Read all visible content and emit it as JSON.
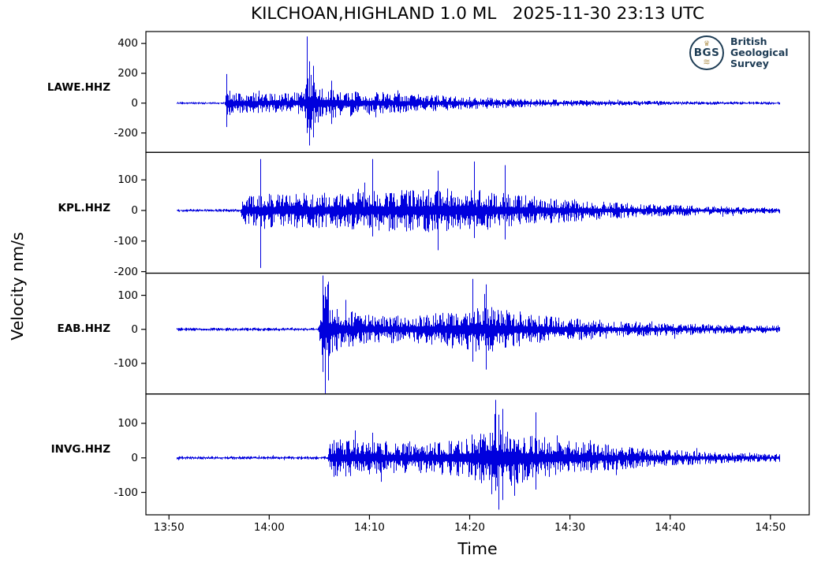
{
  "chart_data": {
    "type": "line",
    "title": "KILCHOAN,HIGHLAND 1.0 ML   2025-11-30 23:13 UTC",
    "xlabel": "Time",
    "ylabel": "Velocity nm/s",
    "trace_color": "#0000dd",
    "axis_color": "#000000",
    "background": "#ffffff",
    "grid": false,
    "legend": "none",
    "x_axis": {
      "reference": "13:50",
      "tick_labels": [
        "13:50",
        "14:00",
        "14:10",
        "14:20",
        "14:30",
        "14:40",
        "14:50"
      ],
      "tick_minutes": [
        0,
        10,
        20,
        30,
        40,
        50,
        60
      ],
      "range_minutes": [
        -2.3,
        63.87
      ]
    },
    "series": [
      {
        "station": "LAWE.HHZ",
        "units": "nm/s",
        "yticks": [
          400,
          200,
          0,
          -200
        ],
        "ylim": [
          -330,
          480
        ],
        "trace_start_min": 0.7,
        "trace_end_min": 60.9,
        "onset_min": 5.7,
        "peak_value": 447,
        "envelope": [
          [
            0.7,
            8
          ],
          [
            5.5,
            8
          ],
          [
            5.8,
            110
          ],
          [
            6.3,
            70
          ],
          [
            7,
            65
          ],
          [
            9,
            70
          ],
          [
            11,
            65
          ],
          [
            13,
            75
          ],
          [
            13.5,
            120
          ],
          [
            13.8,
            260
          ],
          [
            14.1,
            200
          ],
          [
            14.6,
            150
          ],
          [
            15.2,
            120
          ],
          [
            16,
            110
          ],
          [
            17.5,
            95
          ],
          [
            19,
            85
          ],
          [
            21,
            75
          ],
          [
            23,
            68
          ],
          [
            25,
            60
          ],
          [
            27,
            52
          ],
          [
            30,
            42
          ],
          [
            33,
            34
          ],
          [
            36,
            28
          ],
          [
            40,
            22
          ],
          [
            44,
            18
          ],
          [
            48,
            15
          ],
          [
            52,
            13
          ],
          [
            56,
            11
          ],
          [
            60.9,
            10
          ]
        ],
        "spikes": [
          [
            5.75,
            195,
            -160
          ],
          [
            13.75,
            447,
            -200
          ],
          [
            13.95,
            280,
            -284
          ],
          [
            14.35,
            250,
            -230
          ],
          [
            16.2,
            150,
            -140
          ]
        ]
      },
      {
        "station": "KPL.HHZ",
        "units": "nm/s",
        "yticks": [
          100,
          0,
          -100,
          -200
        ],
        "ylim": [
          -205,
          190
        ],
        "trace_start_min": 0.7,
        "trace_end_min": 60.9,
        "onset_min": 7.3,
        "peak_value": 168,
        "envelope": [
          [
            0.7,
            5
          ],
          [
            7.1,
            5
          ],
          [
            7.4,
            52
          ],
          [
            8.5,
            55
          ],
          [
            10,
            55
          ],
          [
            12,
            58
          ],
          [
            14,
            58
          ],
          [
            16,
            60
          ],
          [
            18,
            62
          ],
          [
            20,
            65
          ],
          [
            22,
            68
          ],
          [
            24,
            70
          ],
          [
            26,
            72
          ],
          [
            28,
            72
          ],
          [
            30,
            70
          ],
          [
            32,
            65
          ],
          [
            34,
            58
          ],
          [
            36,
            50
          ],
          [
            38,
            44
          ],
          [
            40,
            38
          ],
          [
            43,
            30
          ],
          [
            46,
            24
          ],
          [
            50,
            19
          ],
          [
            54,
            15
          ],
          [
            58,
            12
          ],
          [
            60.9,
            10
          ]
        ],
        "spikes": [
          [
            9.1,
            168,
            -188
          ],
          [
            20.3,
            168,
            -85
          ],
          [
            26.8,
            130,
            -130
          ],
          [
            30.4,
            160,
            -90
          ],
          [
            33.5,
            148,
            -95
          ]
        ]
      },
      {
        "station": "EAB.HHZ",
        "units": "nm/s",
        "yticks": [
          100,
          0,
          -100
        ],
        "ylim": [
          -190,
          165
        ],
        "trace_start_min": 0.7,
        "trace_end_min": 60.9,
        "onset_min": 15.2,
        "peak_value": 158,
        "envelope": [
          [
            0.7,
            5
          ],
          [
            14.9,
            5
          ],
          [
            15.25,
            105
          ],
          [
            15.9,
            95
          ],
          [
            16.6,
            70
          ],
          [
            17.5,
            58
          ],
          [
            19,
            48
          ],
          [
            21,
            42
          ],
          [
            23,
            40
          ],
          [
            25,
            42
          ],
          [
            27,
            50
          ],
          [
            29,
            60
          ],
          [
            30.5,
            70
          ],
          [
            32,
            66
          ],
          [
            33.5,
            58
          ],
          [
            35,
            50
          ],
          [
            37,
            42
          ],
          [
            39,
            36
          ],
          [
            42,
            30
          ],
          [
            45,
            25
          ],
          [
            48,
            21
          ],
          [
            52,
            17
          ],
          [
            56,
            13
          ],
          [
            60.9,
            11
          ]
        ],
        "spikes": [
          [
            15.35,
            158,
            -125
          ],
          [
            15.55,
            125,
            -192
          ],
          [
            15.9,
            140,
            -150
          ],
          [
            30.3,
            148,
            -95
          ],
          [
            31.6,
            132,
            -118
          ]
        ]
      },
      {
        "station": "INVG.HHZ",
        "units": "nm/s",
        "yticks": [
          100,
          0,
          -100
        ],
        "ylim": [
          -165,
          185
        ],
        "trace_start_min": 0.7,
        "trace_end_min": 60.9,
        "onset_min": 16.1,
        "peak_value": 168,
        "envelope": [
          [
            0.7,
            5
          ],
          [
            15.8,
            5
          ],
          [
            16.15,
            58
          ],
          [
            17,
            56
          ],
          [
            18.5,
            52
          ],
          [
            20,
            48
          ],
          [
            22,
            45
          ],
          [
            24,
            44
          ],
          [
            26,
            46
          ],
          [
            28,
            54
          ],
          [
            30,
            66
          ],
          [
            31.5,
            80
          ],
          [
            32.6,
            95
          ],
          [
            33.6,
            88
          ],
          [
            35,
            75
          ],
          [
            36.5,
            65
          ],
          [
            38,
            58
          ],
          [
            40,
            50
          ],
          [
            42.5,
            42
          ],
          [
            45,
            34
          ],
          [
            48,
            27
          ],
          [
            51,
            22
          ],
          [
            55,
            16
          ],
          [
            58,
            13
          ],
          [
            60.9,
            12
          ]
        ],
        "spikes": [
          [
            32.55,
            168,
            -95
          ],
          [
            32.85,
            125,
            -150
          ],
          [
            33.3,
            142,
            -122
          ],
          [
            36.6,
            132,
            -92
          ]
        ]
      }
    ]
  },
  "logo": {
    "abbr": "BGS",
    "org_lines": [
      "British",
      "Geological",
      "Survey"
    ],
    "navy": "#1d3b54",
    "gold": "#b5995b"
  }
}
